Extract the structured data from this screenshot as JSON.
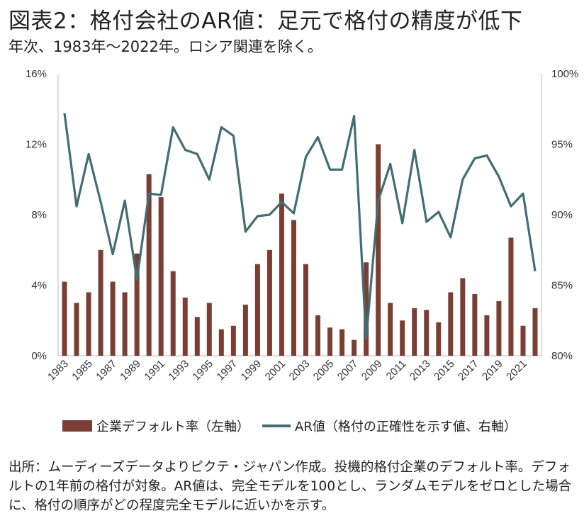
{
  "header": {
    "title": "図表2：格付会社のAR値：足元で格付の精度が低下",
    "subtitle": "年次、1983年～2022年。ロシア関連を除く。"
  },
  "legend": {
    "bar_label": "企業デフォルト率（左軸）",
    "line_label": "AR値（格付の正確性を示す値、右軸）"
  },
  "source_note": "出所：ムーディーズデータよりピクテ・ジャパン作成。投機的格付企業のデフォルト率。デフォルトの1年前の格付が対象。AR値は、完全モデルを100とし、ランダムモデルをゼロとした場合に、格付の順序がどの程度完全モデルに近いかを示す。",
  "colors": {
    "bar": "#7a3e34",
    "line": "#426d74",
    "axis": "#bbbbbb"
  },
  "chart_data": {
    "type": "bar+line",
    "x": [
      1983,
      1984,
      1985,
      1986,
      1987,
      1988,
      1989,
      1990,
      1991,
      1992,
      1993,
      1994,
      1995,
      1996,
      1997,
      1998,
      1999,
      2000,
      2001,
      2002,
      2003,
      2004,
      2005,
      2006,
      2007,
      2008,
      2009,
      2010,
      2011,
      2012,
      2013,
      2014,
      2015,
      2016,
      2017,
      2018,
      2019,
      2020,
      2021,
      2022
    ],
    "x_tick_labels": [
      "1983",
      "1985",
      "1987",
      "1989",
      "1991",
      "1993",
      "1995",
      "1997",
      "1999",
      "2001",
      "2003",
      "2005",
      "2007",
      "2009",
      "2011",
      "2013",
      "2015",
      "2017",
      "2019",
      "2021"
    ],
    "left_axis": {
      "ticks": [
        "0%",
        "4%",
        "8%",
        "12%",
        "16%"
      ],
      "ylim": [
        0,
        16
      ]
    },
    "right_axis": {
      "ticks": [
        "80%",
        "85%",
        "90%",
        "95%",
        "100%"
      ],
      "ylim": [
        80,
        100
      ]
    },
    "series": [
      {
        "name": "企業デフォルト率（左軸）",
        "type": "bar",
        "axis": "left",
        "values": [
          4.2,
          3.0,
          3.6,
          6.0,
          4.2,
          3.6,
          5.8,
          10.3,
          9.0,
          4.8,
          3.3,
          2.2,
          3.0,
          1.5,
          1.7,
          2.9,
          5.2,
          6.0,
          9.2,
          7.7,
          5.2,
          2.3,
          1.6,
          1.5,
          0.9,
          5.3,
          12.0,
          3.0,
          2.0,
          2.7,
          2.6,
          1.9,
          3.6,
          4.4,
          3.5,
          2.3,
          3.1,
          6.7,
          1.7,
          2.7
        ]
      },
      {
        "name": "AR値（格付の正確性を示す値、右軸）",
        "type": "line",
        "axis": "right",
        "values": [
          97.2,
          90.6,
          94.3,
          90.9,
          87.2,
          91.0,
          85.4,
          91.5,
          91.4,
          96.2,
          94.6,
          94.3,
          92.5,
          96.2,
          95.6,
          88.8,
          89.9,
          90.0,
          90.9,
          90.1,
          94.1,
          95.5,
          93.2,
          93.2,
          97.0,
          81.2,
          91.0,
          93.6,
          89.4,
          94.6,
          89.5,
          90.2,
          88.4,
          92.5,
          94.0,
          94.2,
          92.7,
          90.6,
          91.5,
          86.0
        ]
      }
    ]
  }
}
